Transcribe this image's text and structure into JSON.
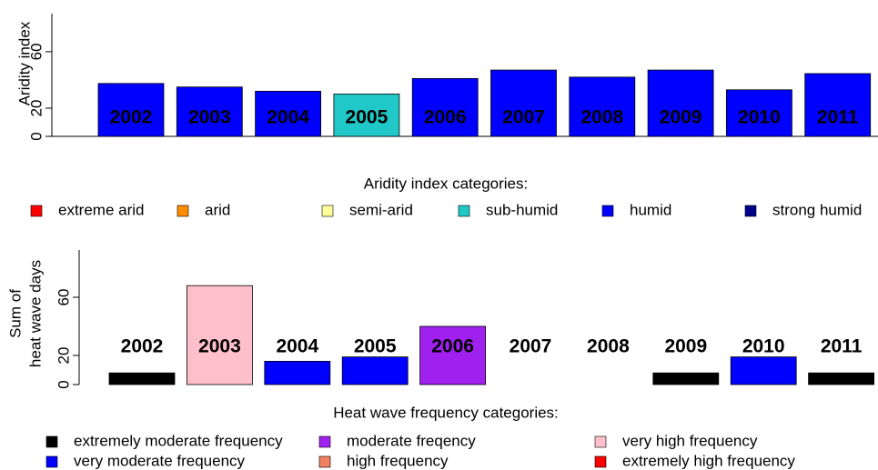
{
  "chart_data": [
    {
      "type": "bar",
      "ylabel": [
        "Aridity index"
      ],
      "categories": [
        "2002",
        "2003",
        "2004",
        "2005",
        "2006",
        "2007",
        "2008",
        "2009",
        "2010",
        "2011"
      ],
      "values": [
        37.5,
        35,
        32,
        30,
        41,
        47,
        42,
        47,
        33,
        44.5
      ],
      "colors": [
        "#0000ff",
        "#0000ff",
        "#0000ff",
        "#20c8c8",
        "#0000ff",
        "#0000ff",
        "#0000ff",
        "#0000ff",
        "#0000ff",
        "#0000ff"
      ],
      "ylim": [
        0,
        87
      ],
      "yticks": [
        0,
        20,
        60
      ],
      "legend": {
        "title": "Aridity index categories:",
        "items": [
          {
            "name": "extreme arid",
            "color": "#ff0000"
          },
          {
            "name": "arid",
            "color": "#ff8c00"
          },
          {
            "name": "semi-arid",
            "color": "#ffff99"
          },
          {
            "name": "sub-humid",
            "color": "#20c8c8"
          },
          {
            "name": "humid",
            "color": "#0000ff"
          },
          {
            "name": "strong humid",
            "color": "#00008b"
          }
        ]
      }
    },
    {
      "type": "bar",
      "ylabel": [
        "Sum of",
        "heat wave days"
      ],
      "categories": [
        "2002",
        "2003",
        "2004",
        "2005",
        "2006",
        "2007",
        "2008",
        "2009",
        "2010",
        "2011"
      ],
      "values": [
        8,
        68,
        16,
        19,
        40,
        0,
        0,
        8,
        19,
        8
      ],
      "colors": [
        "#000000",
        "#ffc0cb",
        "#0000ff",
        "#0000ff",
        "#a020f0",
        null,
        null,
        "#000000",
        "#0000ff",
        "#000000"
      ],
      "ylim": [
        0,
        92.5
      ],
      "yticks": [
        0,
        20,
        60
      ],
      "legend": {
        "title": "Heat wave frequency categories:",
        "items": [
          {
            "name": "extremely moderate frequency",
            "color": "#000000"
          },
          {
            "name": "very moderate frequency",
            "color": "#0000ff"
          },
          {
            "name": "moderate freqency",
            "color": "#a020f0"
          },
          {
            "name": "high frequency",
            "color": "#f08060"
          },
          {
            "name": "very high frequency",
            "color": "#ffc0cb"
          },
          {
            "name": "extremely high frequency",
            "color": "#ff0000"
          }
        ]
      }
    }
  ]
}
